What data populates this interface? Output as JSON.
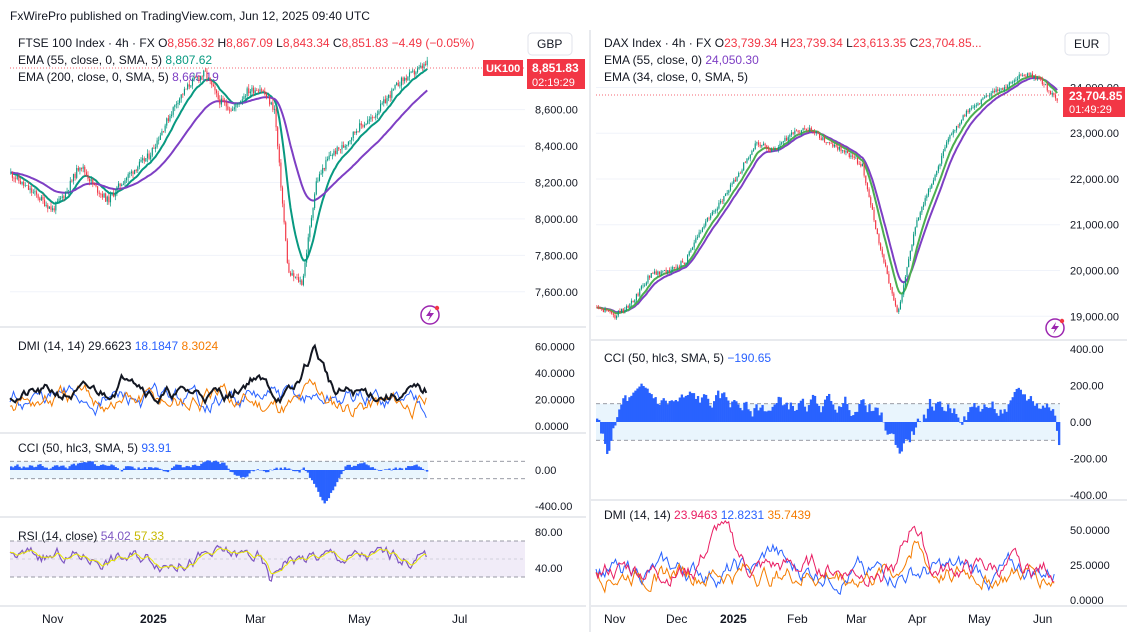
{
  "header": {
    "text": "FxWirePro published on TradingView.com, Jun 12, 2025 09:40 UTC"
  },
  "colors": {
    "candle_up": "#089981",
    "candle_down": "#f23645",
    "ema55_left": "#089981",
    "ema200_left": "#7e3fc4",
    "ema55_right": "#7e3fc4",
    "ema34_right": "#4caf50",
    "dmi_adx": "#131722",
    "dmi_plus": "#2962ff",
    "dmi_minus": "#f57c00",
    "dmi_plus_right": "#e91e63",
    "dmi_minus_right": "#f57c00",
    "dmi_adx_right": "#2962ff",
    "cci": "#2962ff",
    "rsi": "#7e57c2",
    "rsi_ma": "#e8e800",
    "price_tag": "#f23645",
    "grid": "#f0f3fa"
  },
  "left": {
    "currency": "GBP",
    "legend": {
      "symbol": "FTSE 100 Index · 4h · FX",
      "open_label": "O",
      "open": "8,856.32",
      "high_label": "H",
      "high": "8,867.09",
      "low_label": "L",
      "low": "8,843.34",
      "close_label": "C",
      "close": "8,851.83",
      "change": "−4.49 (−0.05%)",
      "ema1_label": "EMA (55, close, 0, SMA, 5)",
      "ema1_value": "8,807.62",
      "ema2_label": "EMA (200, close, 0, SMA, 5)",
      "ema2_value": "8,665.19"
    },
    "price_tag": {
      "label": "UK100",
      "price": "8,851.83",
      "countdown": "02:19:29"
    },
    "price_ticks": [
      "8,600.00",
      "8,400.00",
      "8,200.00",
      "8,000.00",
      "7,800.00",
      "7,600.00"
    ],
    "dmi": {
      "label": "DMI (14, 14)",
      "v1": "29.6623",
      "v2": "18.1847",
      "v3": "8.3024",
      "ticks": [
        "60.0000",
        "40.0000",
        "20.0000",
        "0.0000"
      ]
    },
    "cci": {
      "label": "CCI (50, hlc3, SMA, 5)",
      "value": "93.91",
      "ticks": [
        "0.00",
        "-400.00"
      ]
    },
    "rsi": {
      "label": "RSI (14, close)",
      "v1": "54.02",
      "v2": "57.33",
      "ticks": [
        "80.00",
        "40.00"
      ]
    },
    "time_ticks": [
      "Nov",
      "2025",
      "Mar",
      "May",
      "Jul"
    ]
  },
  "right": {
    "currency": "EUR",
    "legend": {
      "symbol": "DAX Index · 4h · FX",
      "open_label": "O",
      "open": "23,739.34",
      "high_label": "H",
      "high": "23,739.34",
      "low_label": "L",
      "low": "23,613.35",
      "close_label": "C",
      "close": "23,704.85...",
      "ema1_label": "EMA (55, close, 0)",
      "ema1_value": "24,050.30",
      "ema2_label": "EMA (34, close, 0, SMA, 5)"
    },
    "price_tag": {
      "price": "23,704.85",
      "countdown": "01:49:29"
    },
    "price_ticks": [
      "24,000.00",
      "23,000.00",
      "22,000.00",
      "21,000.00",
      "20,000.00",
      "19,000.00"
    ],
    "cci": {
      "label": "CCI (50, hlc3, SMA, 5)",
      "value": "−190.65",
      "ticks": [
        "400.00",
        "200.00",
        "0.00",
        "-200.00",
        "-400.00"
      ]
    },
    "dmi": {
      "label": "DMI (14, 14)",
      "v1": "23.9463",
      "v2": "12.8231",
      "v3": "35.7439",
      "ticks": [
        "50.0000",
        "25.0000",
        "0.0000"
      ]
    },
    "time_ticks": [
      "Nov",
      "Dec",
      "2025",
      "Feb",
      "Mar",
      "Apr",
      "May",
      "Jun"
    ]
  },
  "chart_data": [
    {
      "type": "candlestick",
      "title": "FTSE 100 Index · 4h · FX",
      "ylim": [
        7500,
        8900
      ],
      "x_labels": [
        "Nov",
        "2025",
        "Mar",
        "May",
        "Jul"
      ],
      "close_path": [
        8250,
        8180,
        8120,
        8050,
        8150,
        8300,
        8180,
        8100,
        8200,
        8280,
        8350,
        8500,
        8650,
        8750,
        8800,
        8650,
        8600,
        8700,
        8720,
        8600,
        7700,
        7650,
        8200,
        8350,
        8400,
        8500,
        8550,
        8650,
        8750,
        8800,
        8851.83
      ],
      "series": [
        {
          "name": "EMA (55, close, 0, SMA, 5)",
          "last": 8807.62
        },
        {
          "name": "EMA (200, close, 0, SMA, 5)",
          "last": 8665.19
        }
      ]
    },
    {
      "type": "candlestick",
      "title": "DAX Index · 4h · FX",
      "ylim": [
        18700,
        24600
      ],
      "x_labels": [
        "Nov",
        "Dec",
        "2025",
        "Feb",
        "Mar",
        "Apr",
        "May",
        "Jun"
      ],
      "close_path": [
        19200,
        19000,
        19300,
        19900,
        20000,
        20200,
        21000,
        21500,
        22100,
        22800,
        22600,
        23000,
        23100,
        22800,
        22600,
        22300,
        20500,
        19000,
        21000,
        22000,
        23000,
        23500,
        23800,
        24000,
        24300,
        24200,
        23704.85
      ],
      "series": [
        {
          "name": "EMA (55, close, 0)",
          "last": 24050.3
        },
        {
          "name": "EMA (34, close, 0, SMA, 5)"
        }
      ]
    }
  ]
}
